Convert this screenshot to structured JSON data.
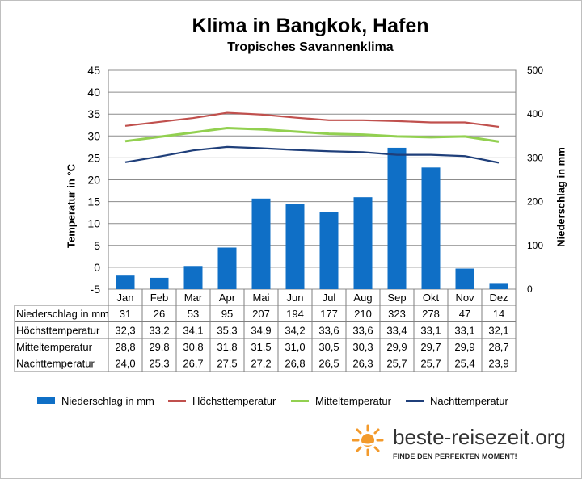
{
  "chart_data": {
    "type": "bar",
    "title": "Klima in Bangkok, Hafen",
    "subtitle": "Tropisches Savannenklima",
    "categories": [
      "Jan",
      "Feb",
      "Mar",
      "Apr",
      "Mai",
      "Jun",
      "Jul",
      "Aug",
      "Sep",
      "Okt",
      "Nov",
      "Dez"
    ],
    "ylabel_left": "Temperatur in °C",
    "ylabel_right": "Niederschlag in mm",
    "ylim_left": [
      -5,
      45
    ],
    "ylim_right": [
      0,
      500
    ],
    "yticks_left": [
      "45",
      "40",
      "35",
      "30",
      "25",
      "20",
      "15",
      "10",
      "5",
      "0",
      "-5"
    ],
    "yticks_right": [
      "500",
      "400",
      "300",
      "200",
      "100",
      "0"
    ],
    "grid": true,
    "legend_position": "bottom",
    "series": [
      {
        "name": "Niederschlag in mm",
        "type": "bar",
        "axis": "right",
        "color": "#0f6fc6",
        "values": [
          31,
          26,
          53,
          95,
          207,
          194,
          177,
          210,
          323,
          278,
          47,
          14
        ],
        "labels": [
          "31",
          "26",
          "53",
          "95",
          "207",
          "194",
          "177",
          "210",
          "323",
          "278",
          "47",
          "14"
        ]
      },
      {
        "name": "Höchsttemperatur",
        "type": "line",
        "axis": "left",
        "color": "#c0504d",
        "values": [
          32.3,
          33.2,
          34.1,
          35.3,
          34.9,
          34.2,
          33.6,
          33.6,
          33.4,
          33.1,
          33.1,
          32.1
        ],
        "labels": [
          "32,3",
          "33,2",
          "34,1",
          "35,3",
          "34,9",
          "34,2",
          "33,6",
          "33,6",
          "33,4",
          "33,1",
          "33,1",
          "32,1"
        ]
      },
      {
        "name": "Mitteltemperatur",
        "type": "line",
        "axis": "left",
        "color": "#92d050",
        "values": [
          28.8,
          29.8,
          30.8,
          31.8,
          31.5,
          31.0,
          30.5,
          30.3,
          29.9,
          29.7,
          29.9,
          28.7
        ],
        "labels": [
          "28,8",
          "29,8",
          "30,8",
          "31,8",
          "31,5",
          "31,0",
          "30,5",
          "30,3",
          "29,9",
          "29,7",
          "29,9",
          "28,7"
        ]
      },
      {
        "name": "Nachttemperatur",
        "type": "line",
        "axis": "left",
        "color": "#1f3f7a",
        "values": [
          24.0,
          25.3,
          26.7,
          27.5,
          27.2,
          26.8,
          26.5,
          26.3,
          25.7,
          25.7,
          25.4,
          23.9
        ],
        "labels": [
          "24,0",
          "25,3",
          "26,7",
          "27,5",
          "27,2",
          "26,8",
          "26,5",
          "26,3",
          "25,7",
          "25,7",
          "25,4",
          "23,9"
        ]
      }
    ]
  },
  "brand": {
    "name": "beste-reisezeit.org",
    "tagline": "FINDE DEN PERFEKTEN MOMENT!"
  }
}
